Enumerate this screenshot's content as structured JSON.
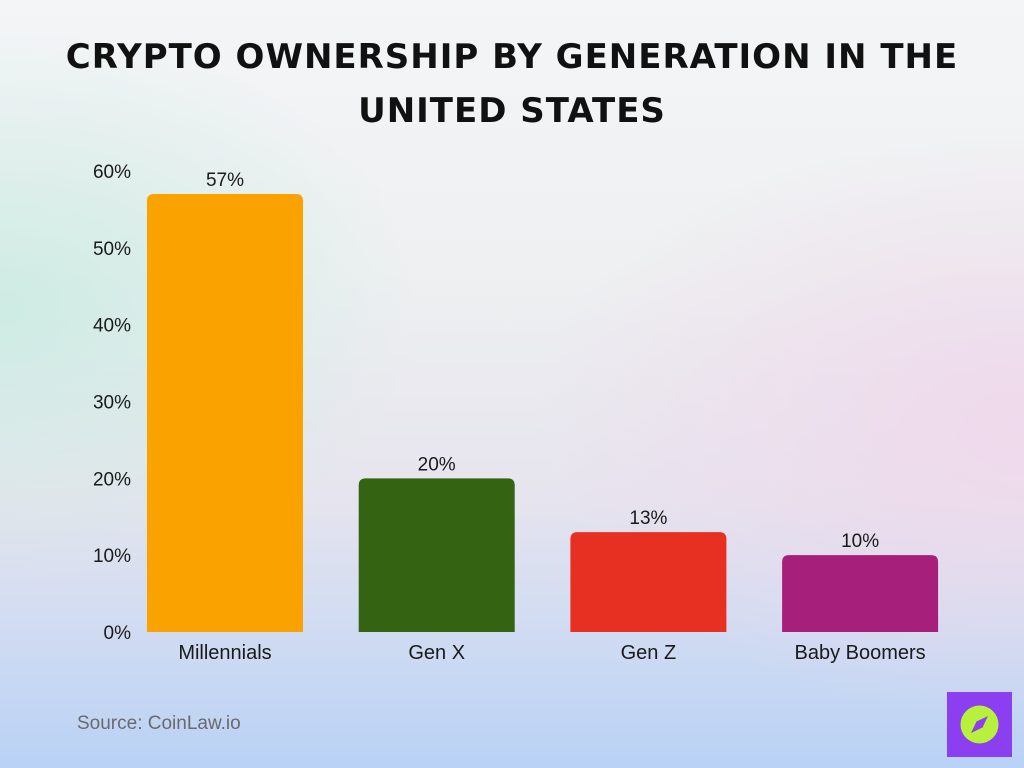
{
  "title": "Crypto Ownership by Generation in the United States",
  "source": "Source: CoinLaw.io",
  "chart_data": {
    "type": "bar",
    "title": "Crypto Ownership by Generation in the United States",
    "categories": [
      "Millennials",
      "Gen X",
      "Gen Z",
      "Baby Boomers"
    ],
    "values": [
      57,
      20,
      13,
      10
    ],
    "data_labels": [
      "57%",
      "20%",
      "13%",
      "10%"
    ],
    "colors": [
      "#f9a200",
      "#346312",
      "#e83022",
      "#a61f7a"
    ],
    "ylim": [
      0,
      60
    ],
    "yticks": [
      0,
      10,
      20,
      30,
      40,
      50,
      60
    ],
    "ytick_labels": [
      "0%",
      "10%",
      "20%",
      "30%",
      "40%",
      "50%",
      "60%"
    ],
    "xlabel": "",
    "ylabel": "",
    "grid": false,
    "legend": "none"
  },
  "logo": {
    "icon": "compass-icon",
    "background_color": "#8b3ff0",
    "circle_color": "#b8f13d"
  }
}
